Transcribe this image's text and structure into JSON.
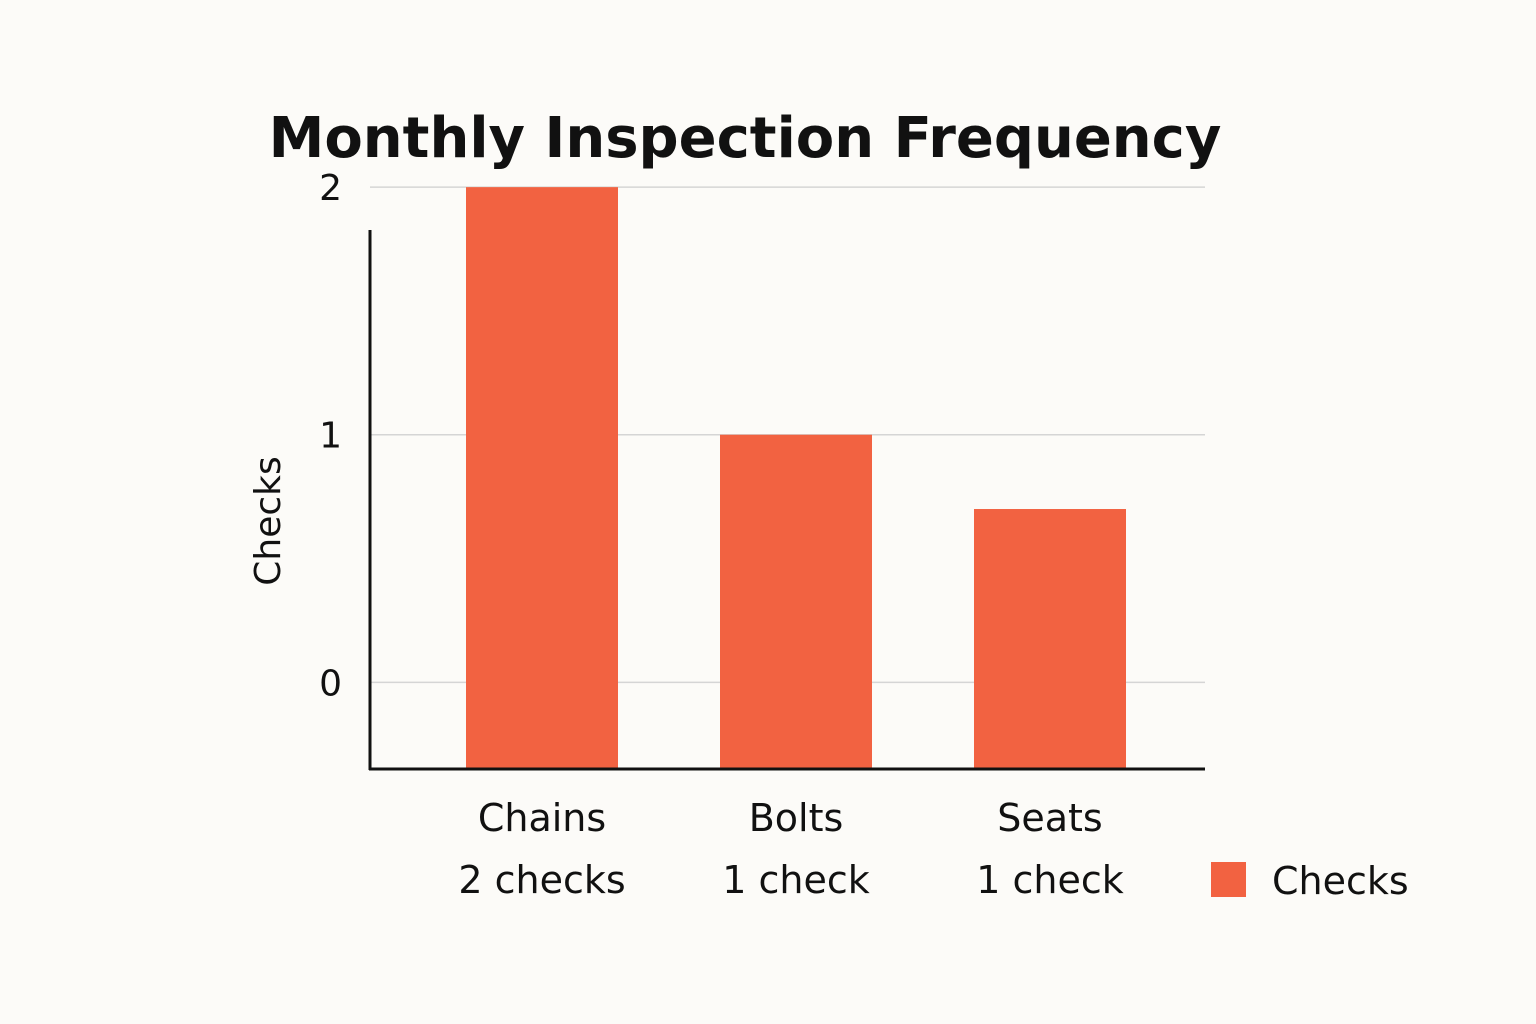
{
  "chart_data": {
    "type": "bar",
    "title": "Monthly Inspection Frequency",
    "ylabel": "Checks",
    "xlabel": "",
    "categories": [
      "Chains",
      "Bolts",
      "Seats"
    ],
    "series": [
      {
        "name": "Checks",
        "values": [
          2,
          1,
          0.7
        ],
        "data_labels": [
          "2 checks",
          "1 check",
          "1 check"
        ]
      }
    ],
    "ylim": [
      -0.35,
      2.15
    ],
    "yticks": [
      0,
      1,
      2
    ],
    "grid": true,
    "legend_position": "bottom-right",
    "colors": {
      "bar": "#f26241",
      "axis": "#111111",
      "grid": "#d5d5d5",
      "background": "#fcfbf8"
    }
  }
}
